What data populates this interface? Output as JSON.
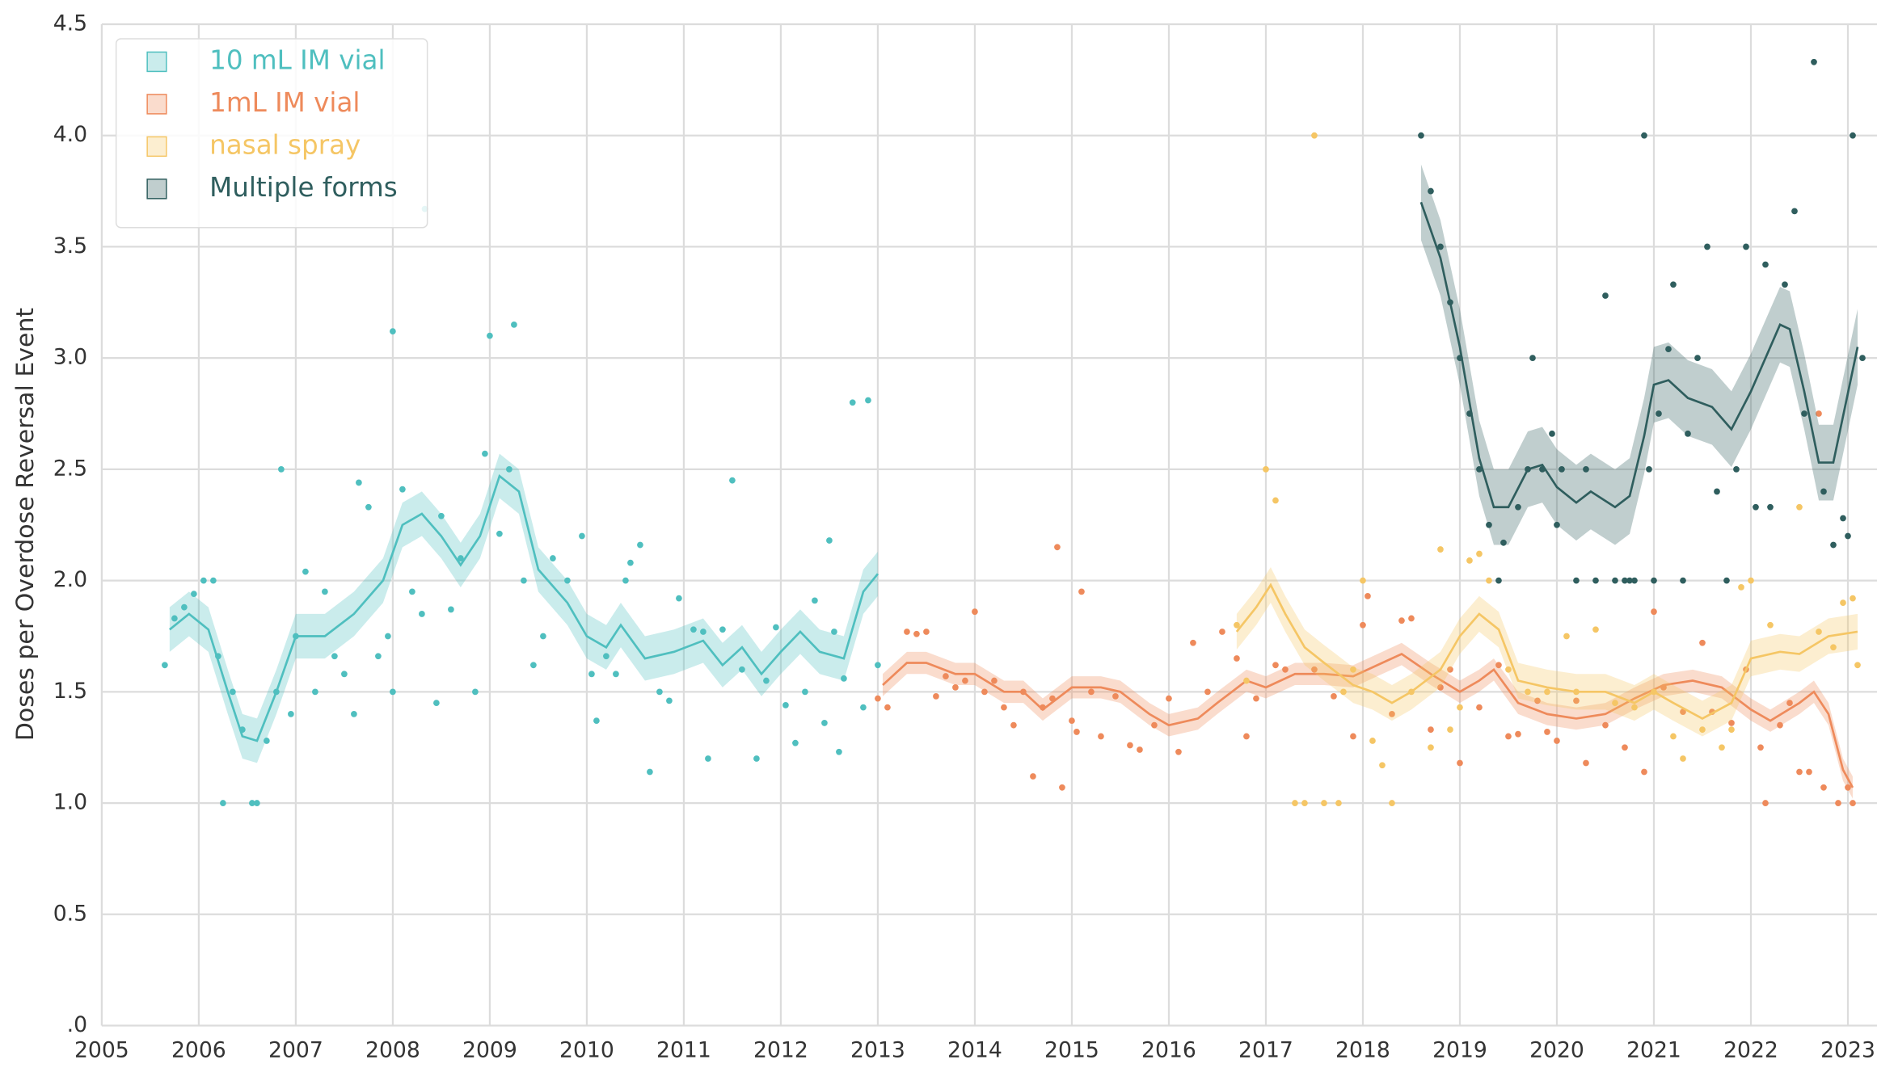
{
  "chart_data": {
    "type": "scatter_smooth",
    "ylabel": "Doses per Overdose Reversal Event",
    "xlim": [
      2005,
      2023.3
    ],
    "ylim": [
      0,
      4.5
    ],
    "xticks": [
      2005,
      2006,
      2007,
      2008,
      2009,
      2010,
      2011,
      2012,
      2013,
      2014,
      2015,
      2016,
      2017,
      2018,
      2019,
      2020,
      2021,
      2022,
      2023
    ],
    "yticks": [
      {
        "value": 0,
        "label": ".0"
      },
      0.5,
      {
        "value": 1,
        "label": "1.0"
      },
      1.5,
      {
        "value": 2,
        "label": "2.0"
      },
      2.5,
      {
        "value": 3,
        "label": "3.0"
      },
      3.5,
      {
        "value": 4,
        "label": "4.0"
      },
      4.5
    ],
    "grid": true,
    "legend": "upper left",
    "series": [
      {
        "name": "10 mL IM vial",
        "color": "#4fbfbf",
        "ci": 0.1,
        "line": {
          "x": [
            2005.7,
            2005.9,
            2006.1,
            2006.3,
            2006.45,
            2006.6,
            2006.8,
            2007.0,
            2007.3,
            2007.6,
            2007.9,
            2008.1,
            2008.3,
            2008.5,
            2008.7,
            2008.9,
            2009.1,
            2009.3,
            2009.5,
            2009.8,
            2010.0,
            2010.2,
            2010.35,
            2010.6,
            2010.9,
            2011.2,
            2011.4,
            2011.6,
            2011.8,
            2012.0,
            2012.2,
            2012.4,
            2012.65,
            2012.85,
            2013.0
          ],
          "y": [
            1.78,
            1.85,
            1.78,
            1.5,
            1.3,
            1.28,
            1.5,
            1.75,
            1.75,
            1.85,
            2.0,
            2.25,
            2.3,
            2.2,
            2.07,
            2.2,
            2.47,
            2.4,
            2.05,
            1.9,
            1.75,
            1.7,
            1.8,
            1.65,
            1.68,
            1.73,
            1.62,
            1.7,
            1.58,
            1.68,
            1.77,
            1.68,
            1.65,
            1.95,
            2.03
          ]
        },
        "scatter": {
          "x": [
            2005.65,
            2005.75,
            2005.85,
            2005.95,
            2006.05,
            2006.15,
            2006.2,
            2006.25,
            2006.35,
            2006.45,
            2006.55,
            2006.6,
            2006.7,
            2006.8,
            2006.85,
            2006.95,
            2007.0,
            2007.1,
            2007.2,
            2007.3,
            2007.4,
            2007.5,
            2007.6,
            2007.65,
            2007.75,
            2007.85,
            2007.95,
            2008.0,
            2008.0,
            2008.1,
            2008.2,
            2008.3,
            2008.33,
            2008.45,
            2008.5,
            2008.6,
            2008.7,
            2008.85,
            2008.95,
            2009.0,
            2009.1,
            2009.2,
            2009.25,
            2009.35,
            2009.45,
            2009.55,
            2009.65,
            2009.8,
            2009.95,
            2010.05,
            2010.1,
            2010.2,
            2010.3,
            2010.4,
            2010.45,
            2010.55,
            2010.65,
            2010.75,
            2010.85,
            2010.95,
            2011.1,
            2011.2,
            2011.25,
            2011.4,
            2011.5,
            2011.6,
            2011.75,
            2011.85,
            2011.95,
            2012.05,
            2012.15,
            2012.25,
            2012.35,
            2012.45,
            2012.5,
            2012.55,
            2012.6,
            2012.65,
            2012.74,
            2012.85,
            2012.9,
            2013.0
          ],
          "y": [
            1.62,
            1.83,
            1.88,
            1.94,
            2.0,
            2.0,
            1.66,
            1.0,
            1.5,
            1.33,
            1.0,
            1.0,
            1.28,
            1.5,
            2.5,
            1.4,
            1.75,
            2.04,
            1.5,
            1.95,
            1.66,
            1.58,
            1.4,
            2.44,
            2.33,
            1.66,
            1.75,
            1.5,
            3.12,
            2.41,
            1.95,
            1.85,
            3.67,
            1.45,
            2.29,
            1.87,
            2.1,
            1.5,
            2.57,
            3.1,
            2.21,
            2.5,
            3.15,
            2.0,
            1.62,
            1.75,
            2.1,
            2.0,
            2.2,
            1.58,
            1.37,
            1.66,
            1.58,
            2.0,
            2.08,
            2.16,
            1.14,
            1.5,
            1.46,
            1.92,
            1.78,
            1.77,
            1.2,
            1.78,
            2.45,
            1.6,
            1.2,
            1.55,
            1.79,
            1.44,
            1.27,
            1.5,
            1.91,
            1.36,
            2.18,
            1.77,
            1.23,
            1.56,
            2.8,
            1.43,
            2.81,
            1.62
          ]
        }
      },
      {
        "name": "1mL IM vial",
        "color": "#ee8a5b",
        "ci": 0.05,
        "line": {
          "x": [
            2013.05,
            2013.3,
            2013.5,
            2013.8,
            2014.0,
            2014.3,
            2014.5,
            2014.7,
            2015.0,
            2015.3,
            2015.5,
            2015.8,
            2016.0,
            2016.3,
            2016.5,
            2016.8,
            2017.0,
            2017.3,
            2017.6,
            2017.9,
            2018.2,
            2018.4,
            2018.7,
            2019.0,
            2019.2,
            2019.35,
            2019.6,
            2019.9,
            2020.2,
            2020.5,
            2020.8,
            2021.1,
            2021.4,
            2021.7,
            2022.0,
            2022.2,
            2022.5,
            2022.65,
            2022.8,
            2022.95,
            2023.05
          ],
          "y": [
            1.53,
            1.63,
            1.63,
            1.58,
            1.58,
            1.5,
            1.5,
            1.42,
            1.52,
            1.52,
            1.5,
            1.4,
            1.35,
            1.38,
            1.45,
            1.55,
            1.52,
            1.58,
            1.58,
            1.57,
            1.63,
            1.67,
            1.58,
            1.5,
            1.55,
            1.6,
            1.45,
            1.4,
            1.38,
            1.4,
            1.47,
            1.53,
            1.55,
            1.52,
            1.42,
            1.37,
            1.45,
            1.5,
            1.4,
            1.15,
            1.07
          ]
        },
        "scatter": {
          "x": [
            2013.0,
            2013.1,
            2013.3,
            2013.4,
            2013.5,
            2013.6,
            2013.7,
            2013.8,
            2013.9,
            2014.0,
            2014.1,
            2014.2,
            2014.3,
            2014.4,
            2014.5,
            2014.6,
            2014.7,
            2014.8,
            2014.85,
            2014.9,
            2015.0,
            2015.05,
            2015.1,
            2015.2,
            2015.3,
            2015.45,
            2015.6,
            2015.7,
            2015.85,
            2016.0,
            2016.1,
            2016.25,
            2016.4,
            2016.55,
            2016.7,
            2016.8,
            2016.9,
            2017.1,
            2017.2,
            2017.5,
            2017.7,
            2017.9,
            2018.0,
            2018.05,
            2018.3,
            2018.4,
            2018.5,
            2018.7,
            2018.8,
            2018.9,
            2019.0,
            2019.2,
            2019.4,
            2019.5,
            2019.6,
            2019.8,
            2019.9,
            2020.0,
            2020.2,
            2020.3,
            2020.5,
            2020.7,
            2020.9,
            2021.0,
            2021.1,
            2021.3,
            2021.5,
            2021.6,
            2021.8,
            2021.95,
            2022.1,
            2022.15,
            2022.3,
            2022.4,
            2022.5,
            2022.6,
            2022.7,
            2022.75,
            2022.9,
            2023.0,
            2023.05
          ],
          "y": [
            1.47,
            1.43,
            1.77,
            1.76,
            1.77,
            1.48,
            1.57,
            1.52,
            1.55,
            1.86,
            1.5,
            1.55,
            1.43,
            1.35,
            1.5,
            1.12,
            1.43,
            1.47,
            2.15,
            1.07,
            1.37,
            1.32,
            1.95,
            1.5,
            1.3,
            1.48,
            1.26,
            1.24,
            1.35,
            1.47,
            1.23,
            1.72,
            1.5,
            1.77,
            1.65,
            1.3,
            1.47,
            1.62,
            1.6,
            1.6,
            1.48,
            1.3,
            1.8,
            1.93,
            1.4,
            1.82,
            1.83,
            1.33,
            1.52,
            1.6,
            1.18,
            1.43,
            1.62,
            1.3,
            1.31,
            1.46,
            1.32,
            1.28,
            1.46,
            1.18,
            1.35,
            1.25,
            1.14,
            1.86,
            1.52,
            1.41,
            1.72,
            1.41,
            1.36,
            1.6,
            1.25,
            1.0,
            1.35,
            1.45,
            1.14,
            1.14,
            2.75,
            1.07,
            1.0,
            1.07,
            1.0
          ]
        }
      },
      {
        "name": "nasal spray",
        "color": "#f5c665",
        "ci": 0.08,
        "line": {
          "x": [
            2016.7,
            2016.9,
            2017.05,
            2017.2,
            2017.4,
            2017.6,
            2017.9,
            2018.1,
            2018.3,
            2018.5,
            2018.8,
            2019.0,
            2019.2,
            2019.4,
            2019.6,
            2019.9,
            2020.2,
            2020.5,
            2020.8,
            2021.0,
            2021.2,
            2021.5,
            2021.8,
            2022.0,
            2022.3,
            2022.5,
            2022.8,
            2023.1
          ],
          "y": [
            1.77,
            1.88,
            1.98,
            1.85,
            1.7,
            1.63,
            1.53,
            1.5,
            1.45,
            1.5,
            1.6,
            1.75,
            1.85,
            1.78,
            1.55,
            1.52,
            1.5,
            1.5,
            1.45,
            1.5,
            1.45,
            1.38,
            1.45,
            1.65,
            1.68,
            1.67,
            1.75,
            1.77
          ]
        },
        "scatter": {
          "x": [
            2016.7,
            2016.8,
            2017.0,
            2017.1,
            2017.3,
            2017.4,
            2017.5,
            2017.6,
            2017.75,
            2017.8,
            2017.9,
            2018.0,
            2018.1,
            2018.2,
            2018.3,
            2018.5,
            2018.7,
            2018.8,
            2018.9,
            2019.0,
            2019.1,
            2019.2,
            2019.3,
            2019.5,
            2019.7,
            2019.9,
            2020.1,
            2020.2,
            2020.4,
            2020.6,
            2020.8,
            2021.0,
            2021.2,
            2021.3,
            2021.5,
            2021.7,
            2021.8,
            2021.9,
            2022.0,
            2022.2,
            2022.5,
            2022.7,
            2022.85,
            2022.95,
            2023.05,
            2023.1
          ],
          "y": [
            1.8,
            1.55,
            2.5,
            2.36,
            1.0,
            1.0,
            4.0,
            1.0,
            1.0,
            1.5,
            1.6,
            2.0,
            1.28,
            1.17,
            1.0,
            1.5,
            1.25,
            2.14,
            1.33,
            1.43,
            2.09,
            2.12,
            2.0,
            1.6,
            1.5,
            1.5,
            1.75,
            1.5,
            1.78,
            1.45,
            1.43,
            1.5,
            1.3,
            1.2,
            1.33,
            1.25,
            1.33,
            1.97,
            2.0,
            1.8,
            2.33,
            1.77,
            1.7,
            1.9,
            1.92,
            1.62
          ]
        }
      },
      {
        "name": "Multiple forms",
        "color": "#2f5e5e",
        "ci": 0.17,
        "line": {
          "x": [
            2018.6,
            2018.8,
            2019.0,
            2019.2,
            2019.35,
            2019.5,
            2019.7,
            2019.85,
            2020.0,
            2020.2,
            2020.35,
            2020.6,
            2020.75,
            2020.9,
            2021.0,
            2021.15,
            2021.35,
            2021.6,
            2021.8,
            2022.0,
            2022.2,
            2022.3,
            2022.4,
            2022.55,
            2022.7,
            2022.85,
            2023.1
          ],
          "y": [
            3.7,
            3.45,
            3.05,
            2.55,
            2.33,
            2.33,
            2.5,
            2.52,
            2.42,
            2.35,
            2.4,
            2.33,
            2.38,
            2.65,
            2.88,
            2.9,
            2.82,
            2.78,
            2.68,
            2.85,
            3.05,
            3.15,
            3.13,
            2.85,
            2.53,
            2.53,
            3.05
          ]
        },
        "scatter": {
          "x": [
            2018.6,
            2018.7,
            2018.8,
            2018.9,
            2019.0,
            2019.1,
            2019.2,
            2019.3,
            2019.4,
            2019.45,
            2019.6,
            2019.7,
            2019.75,
            2019.85,
            2019.95,
            2020.0,
            2020.05,
            2020.2,
            2020.3,
            2020.4,
            2020.5,
            2020.6,
            2020.7,
            2020.75,
            2020.8,
            2020.9,
            2020.95,
            2021.0,
            2021.05,
            2021.15,
            2021.2,
            2021.3,
            2021.35,
            2021.45,
            2021.55,
            2021.65,
            2021.75,
            2021.85,
            2021.95,
            2022.05,
            2022.15,
            2022.2,
            2022.35,
            2022.45,
            2022.55,
            2022.65,
            2022.75,
            2022.85,
            2022.95,
            2023.0,
            2023.05,
            2023.15
          ],
          "y": [
            4.0,
            3.75,
            3.5,
            3.25,
            3.0,
            2.75,
            2.5,
            2.25,
            2.0,
            2.17,
            2.33,
            2.5,
            3.0,
            2.5,
            2.66,
            2.25,
            2.5,
            2.0,
            2.5,
            2.0,
            3.28,
            2.0,
            2.0,
            2.0,
            2.0,
            4.0,
            2.5,
            2.0,
            2.75,
            3.04,
            3.33,
            2.0,
            2.66,
            3.0,
            3.5,
            2.4,
            2.0,
            2.5,
            3.5,
            2.33,
            3.42,
            2.33,
            3.33,
            3.66,
            2.75,
            4.33,
            2.4,
            2.16,
            2.28,
            2.2,
            4.0,
            3.0
          ]
        }
      }
    ]
  }
}
